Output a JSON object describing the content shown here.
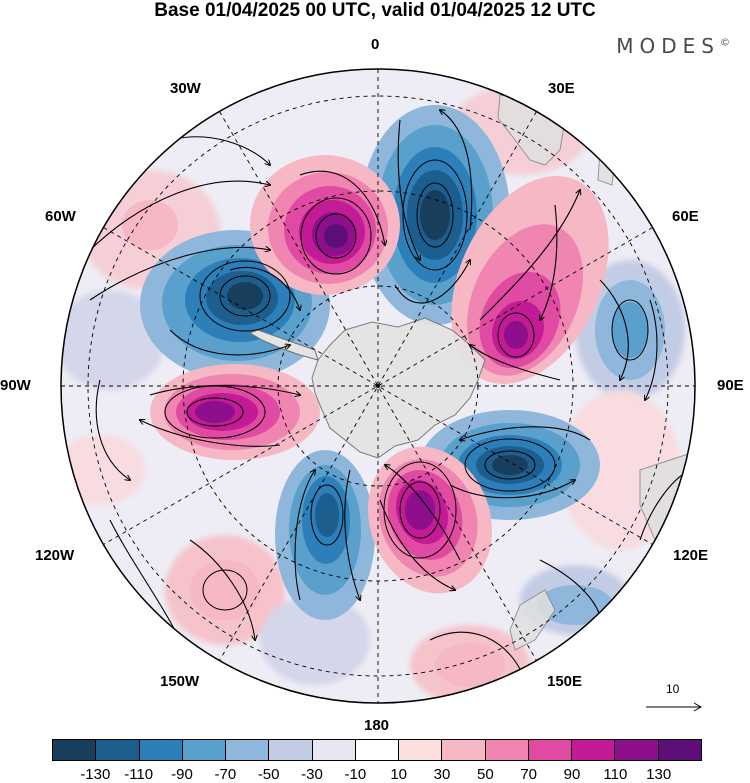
{
  "header": {
    "title": "Base 01/04/2025 00 UTC, valid 01/04/2025 12 UTC",
    "brand": "MODES",
    "brand_mark": "©"
  },
  "map": {
    "projection": "south-polar-stereographic",
    "longitude_labels": {
      "top": "0",
      "upper_left": "30W",
      "upper_right": "30E",
      "left_upper": "60W",
      "right_upper": "60E",
      "left": "90W",
      "right": "90E",
      "left_lower": "120W",
      "right_lower": "120E",
      "lower_left": "150W",
      "lower_right": "150E",
      "bottom": "180"
    },
    "reference_vector_label": "10",
    "shading_field": "anomaly",
    "positive_centers": [
      "near 15W",
      "near 50E",
      "near 90W",
      "near 160E"
    ],
    "negative_centers": [
      "near 10E",
      "near 60W",
      "near 110E",
      "near 150W",
      "near 75E"
    ]
  },
  "colorbar": {
    "colors": [
      "#183e5e",
      "#1c5f8e",
      "#2c7fb8",
      "#5aa0cc",
      "#8eb7db",
      "#c3cce5",
      "#e7e6f2",
      "#ffffff",
      "#fbdede",
      "#f6b8c4",
      "#ef85b0",
      "#e04aa3",
      "#c31a95",
      "#8e0f8b",
      "#5e0e78"
    ],
    "tick_labels": [
      "-130",
      "-110",
      "-90",
      "-70",
      "-50",
      "-30",
      "-10",
      "10",
      "30",
      "50",
      "70",
      "90",
      "110",
      "130"
    ]
  },
  "colors": {
    "land": "#e0e0e0",
    "coast": "#707070",
    "grid": "#000000"
  }
}
